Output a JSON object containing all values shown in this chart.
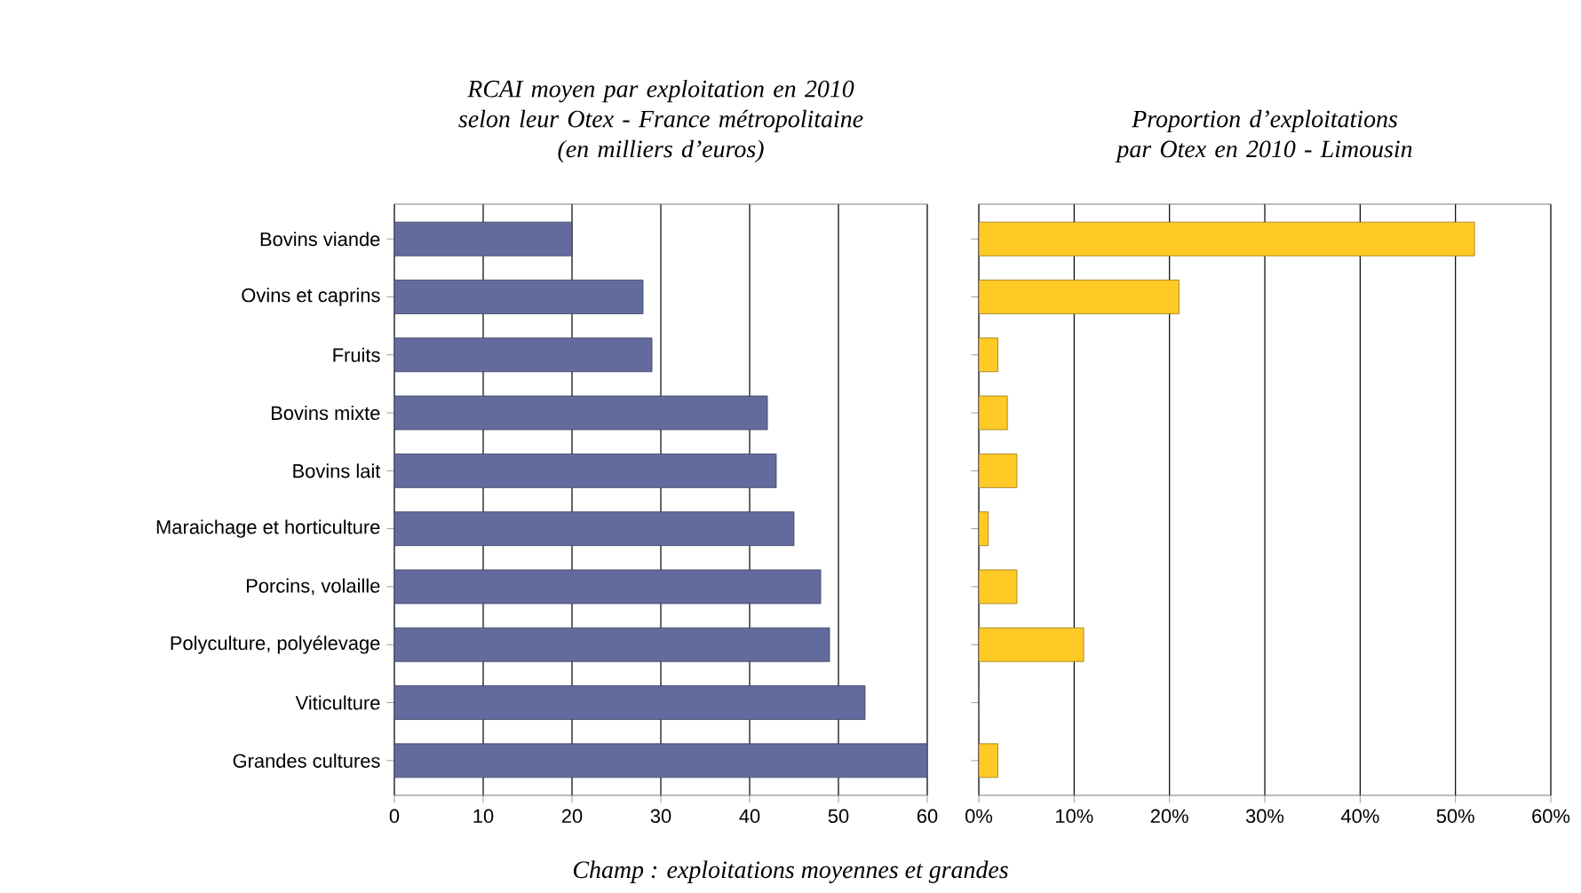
{
  "chart_data": [
    {
      "type": "bar",
      "orientation": "horizontal",
      "title": "RCAI moyen par exploitation en 2010 selon leur Otex - France métropolitaine",
      "subtitle": "(en milliers d’euros)",
      "categories": [
        "Bovins viande",
        "Ovins et caprins",
        "Fruits",
        "Bovins mixte",
        "Bovins lait",
        "Maraichage et horticulture",
        "Porcins, volaille",
        "Polyculture, polyélevage",
        "Viticulture",
        "Grandes cultures"
      ],
      "values": [
        20,
        28,
        29,
        42,
        43,
        45,
        48,
        49,
        53,
        60
      ],
      "color": "#636b9e",
      "xlim": [
        0,
        60
      ],
      "xticks": [
        0,
        10,
        20,
        30,
        40,
        50,
        60
      ],
      "grid": "x",
      "annotations": [
        "Champ : exploitations moyennes et grandes"
      ]
    },
    {
      "type": "bar",
      "orientation": "horizontal",
      "title": "Proportion d’exploitations par Otex en 2010 - Limousin",
      "categories": [
        null,
        null,
        null,
        null,
        null,
        null,
        null,
        null,
        null,
        null
      ],
      "values": [
        52,
        21,
        2,
        3,
        4,
        1,
        4,
        11,
        0,
        2
      ],
      "color": "#ffc926",
      "xlim": [
        0,
        60
      ],
      "xticks": [
        {
          "value": 0,
          "label": "0%"
        },
        {
          "value": 10,
          "label": "10%"
        },
        {
          "value": 20,
          "label": "20%"
        },
        {
          "value": 30,
          "label": "30%"
        },
        {
          "value": 40,
          "label": "40%"
        },
        {
          "value": 50,
          "label": "50%"
        },
        {
          "value": 60,
          "label": "60%"
        }
      ],
      "grid": "x",
      "tick_labels": "x"
    }
  ]
}
